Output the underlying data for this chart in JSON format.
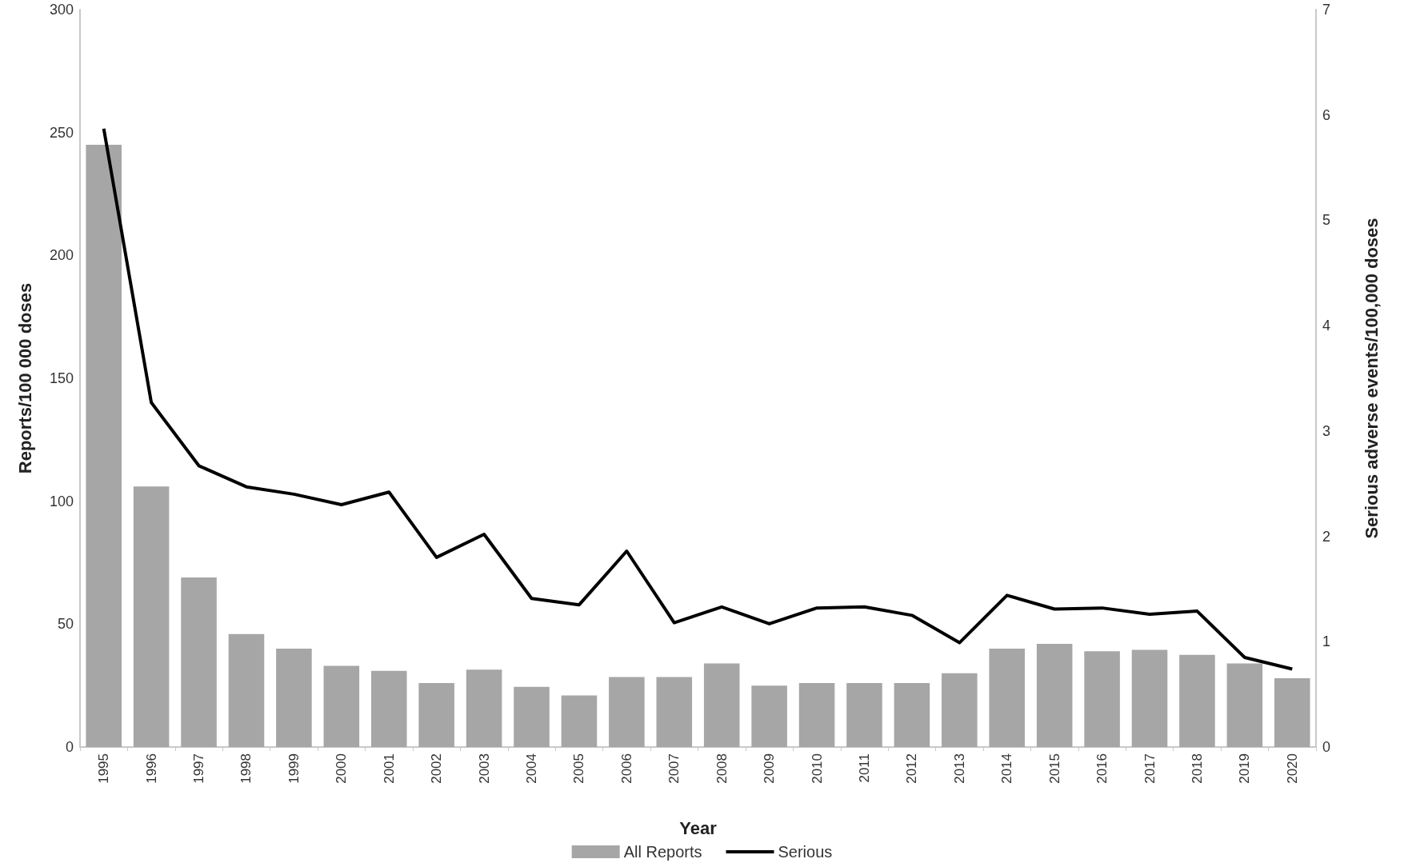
{
  "chart_data": {
    "type": "bar",
    "xlabel": "Year",
    "ylabel": "Reports/100 000 doses",
    "y2label": "Serious adverse events/100,000 doses",
    "categories": [
      "1995",
      "1996",
      "1997",
      "1998",
      "1999",
      "2000",
      "2001",
      "2002",
      "2003",
      "2004",
      "2005",
      "2006",
      "2007",
      "2008",
      "2009",
      "2010",
      "2011",
      "2012",
      "2013",
      "2014",
      "2015",
      "2016",
      "2017",
      "2018",
      "2019",
      "2020"
    ],
    "series": [
      {
        "name": "All Reports",
        "color": "#a6a6a6",
        "values": [
          245,
          106,
          69,
          46,
          40,
          33,
          31,
          26,
          31.5,
          24.5,
          21,
          28.5,
          28.5,
          34,
          25,
          26,
          26,
          26,
          30,
          40,
          42,
          39,
          39.5,
          37.5,
          34,
          28
        ]
      },
      {
        "name": "Serious",
        "type": "line",
        "axis": "y2",
        "color": "#000000",
        "values": [
          5.87,
          3.27,
          2.67,
          2.47,
          2.4,
          2.3,
          2.42,
          1.8,
          2.02,
          1.41,
          1.35,
          1.86,
          1.18,
          1.33,
          1.17,
          1.32,
          1.33,
          1.25,
          0.99,
          1.44,
          1.31,
          1.32,
          1.26,
          1.29,
          0.85,
          0.74
        ]
      }
    ],
    "ylim": [
      0,
      300
    ],
    "yticks": [
      0,
      50,
      100,
      150,
      200,
      250,
      300
    ],
    "y2lim": [
      0,
      7
    ],
    "y2ticks": [
      0,
      1,
      2,
      3,
      4,
      5,
      6,
      7
    ],
    "grid": false,
    "legend": "bottom",
    "marker": "none"
  }
}
